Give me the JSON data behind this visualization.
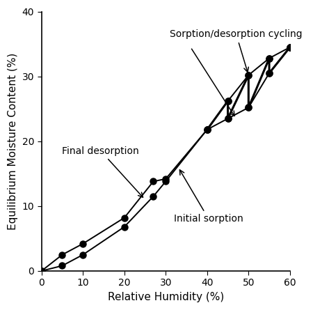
{
  "xlabel": "Relative Humidity (%)",
  "ylabel": "Equilibrium Moisture Content (%)",
  "xlim": [
    0,
    60
  ],
  "ylim": [
    0,
    40
  ],
  "xticks": [
    0,
    10,
    20,
    30,
    40,
    50,
    60
  ],
  "yticks": [
    0,
    10,
    20,
    30,
    40
  ],
  "initial_sorption_x": [
    0,
    5,
    10,
    20,
    27,
    30,
    40,
    45,
    50,
    55,
    60
  ],
  "initial_sorption_y": [
    0,
    0.8,
    2.5,
    6.8,
    11.5,
    13.8,
    21.8,
    23.5,
    25.2,
    30.5,
    34.5
  ],
  "final_desorption_x": [
    0,
    5,
    10,
    20,
    27,
    30,
    40,
    45,
    50,
    55,
    60
  ],
  "final_desorption_y": [
    0,
    2.5,
    4.2,
    8.2,
    13.8,
    14.2,
    21.8,
    26.2,
    30.2,
    32.8,
    34.5
  ],
  "cycling_x": [
    40,
    45,
    45,
    50,
    50,
    55,
    55,
    60
  ],
  "cycling_y": [
    21.8,
    26.2,
    23.5,
    30.2,
    25.2,
    32.8,
    30.5,
    34.5
  ],
  "line_color": "#000000",
  "marker_color": "#000000",
  "marker_size": 6.5,
  "linewidth": 1.4,
  "cycling_linewidth": 2.2,
  "font_size": 11,
  "annot_fontsize": 10
}
